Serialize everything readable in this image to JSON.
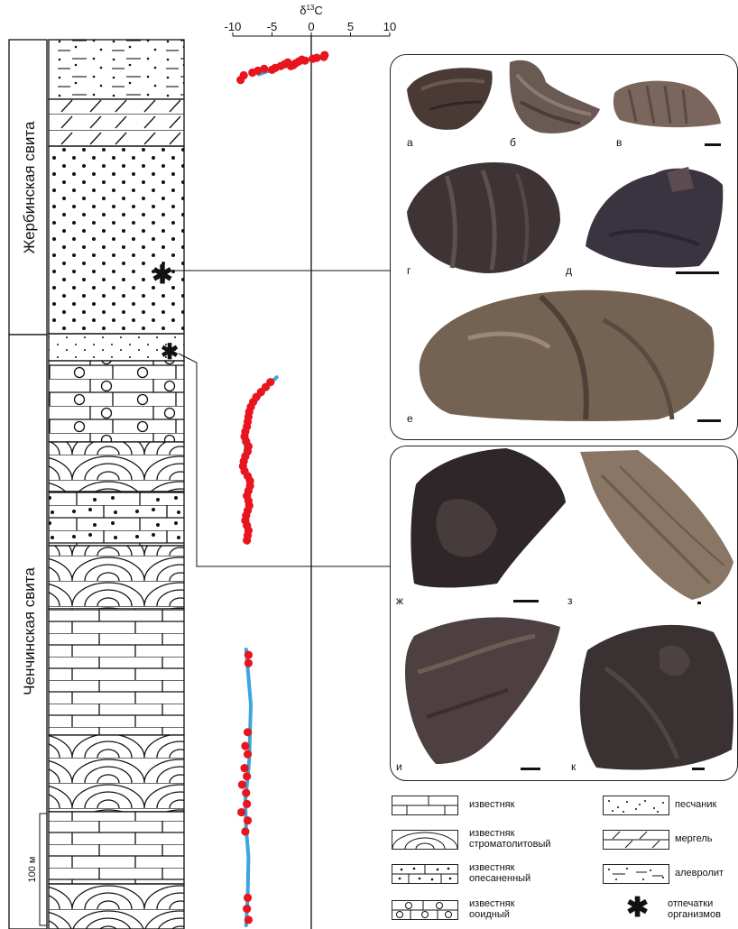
{
  "formations": {
    "upper": "Жербинская свита",
    "lower": "Ченчинская свита"
  },
  "chart_data": {
    "type": "scatter",
    "title": "",
    "xlabel": "δ13C",
    "xlabel_main": "δ",
    "xlabel_sup": "13",
    "xlabel_tail": "C",
    "xlim": [
      -10,
      10
    ],
    "xticks": [
      "-10",
      "-5",
      "0",
      "5",
      "10"
    ],
    "ylabel": "",
    "series": [
      {
        "section": "upper",
        "points": [
          [
            0.7,
            0.06
          ],
          [
            1.6,
            0.05
          ],
          [
            1.7,
            0.03
          ],
          [
            0.2,
            0.07
          ],
          [
            -0.8,
            0.09
          ],
          [
            -1.2,
            0.08
          ],
          [
            -1.6,
            0.1
          ],
          [
            -2.0,
            0.12
          ],
          [
            -2.3,
            0.14
          ],
          [
            -2.6,
            0.15
          ],
          [
            -3.0,
            0.11
          ],
          [
            -3.4,
            0.13
          ],
          [
            -3.9,
            0.15
          ],
          [
            -4.6,
            0.17
          ],
          [
            -5.0,
            0.19
          ],
          [
            -6.0,
            0.18
          ],
          [
            -6.8,
            0.2
          ],
          [
            -7.5,
            0.22
          ],
          [
            -8.6,
            0.25
          ],
          [
            -9.0,
            0.3
          ]
        ],
        "trend": [
          [
            2.0,
            0.03
          ],
          [
            0.6,
            0.06
          ],
          [
            -1.5,
            0.1
          ],
          [
            -3.4,
            0.14
          ],
          [
            -5.3,
            0.2
          ],
          [
            -6.7,
            0.24
          ]
        ]
      },
      {
        "section": "middle",
        "points": [
          [
            -5.2,
            0.32
          ],
          [
            -5.8,
            0.34
          ],
          [
            -6.4,
            0.36
          ],
          [
            -7.0,
            0.38
          ],
          [
            -7.4,
            0.4
          ],
          [
            -7.7,
            0.42
          ],
          [
            -7.9,
            0.44
          ],
          [
            -8.0,
            0.46
          ],
          [
            -8.1,
            0.48
          ],
          [
            -8.2,
            0.5
          ],
          [
            -8.4,
            0.52
          ],
          [
            -8.5,
            0.54
          ],
          [
            -8.3,
            0.56
          ],
          [
            -8.0,
            0.58
          ],
          [
            -8.1,
            0.6
          ],
          [
            -8.4,
            0.62
          ],
          [
            -8.6,
            0.64
          ],
          [
            -8.7,
            0.66
          ],
          [
            -8.5,
            0.68
          ],
          [
            -8.1,
            0.7
          ],
          [
            -7.8,
            0.72
          ],
          [
            -7.8,
            0.74
          ],
          [
            -8.0,
            0.76
          ],
          [
            -8.2,
            0.78
          ],
          [
            -8.0,
            0.8
          ],
          [
            -7.9,
            0.82
          ],
          [
            -8.1,
            0.84
          ],
          [
            -8.3,
            0.86
          ],
          [
            -8.4,
            0.88
          ],
          [
            -8.2,
            0.9
          ],
          [
            -8.0,
            0.92
          ],
          [
            -8.1,
            0.94
          ],
          [
            -8.2,
            0.96
          ]
        ],
        "trend": [
          [
            -4.4,
            0.3
          ],
          [
            -6.0,
            0.35
          ],
          [
            -7.6,
            0.42
          ],
          [
            -8.3,
            0.5
          ],
          [
            -8.4,
            0.6
          ],
          [
            -8.6,
            0.66
          ],
          [
            -7.9,
            0.74
          ],
          [
            -8.1,
            0.84
          ],
          [
            -8.3,
            0.9
          ],
          [
            -8.1,
            0.97
          ]
        ]
      },
      {
        "section": "lower",
        "points": [
          [
            -8.0,
            0.02
          ],
          [
            -8.0,
            0.05
          ],
          [
            -8.1,
            0.3
          ],
          [
            -8.4,
            0.35
          ],
          [
            -8.1,
            0.38
          ],
          [
            -8.5,
            0.43
          ],
          [
            -8.2,
            0.46
          ],
          [
            -8.8,
            0.49
          ],
          [
            -8.3,
            0.52
          ],
          [
            -8.2,
            0.56
          ],
          [
            -8.9,
            0.59
          ],
          [
            -8.1,
            0.62
          ],
          [
            -8.4,
            0.66
          ],
          [
            -8.1,
            0.9
          ],
          [
            -8.2,
            0.94
          ],
          [
            -8.0,
            0.98
          ]
        ],
        "trend": [
          [
            -8.3,
            0.0
          ],
          [
            -7.7,
            0.2
          ],
          [
            -7.9,
            0.4
          ],
          [
            -8.4,
            0.55
          ],
          [
            -8.3,
            0.65
          ],
          [
            -8.0,
            0.75
          ],
          [
            -8.1,
            0.9
          ],
          [
            -8.3,
            1.0
          ]
        ]
      }
    ]
  },
  "scale": {
    "label": "100 м"
  },
  "photos": {
    "panel_labels": [
      "а",
      "б",
      "в",
      "г",
      "д",
      "е",
      "ж",
      "з",
      "и",
      "к"
    ]
  },
  "legend": {
    "items": [
      {
        "key": "limestone",
        "line1": "известняк",
        "line2": ""
      },
      {
        "key": "stromatolite",
        "line1": "известняк",
        "line2": "строматолитовый"
      },
      {
        "key": "sandy",
        "line1": "известняк",
        "line2": "опесаненный"
      },
      {
        "key": "ooid",
        "line1": "известняк",
        "line2": "ооидный"
      },
      {
        "key": "sandstone",
        "line1": "песчаник",
        "line2": ""
      },
      {
        "key": "marl",
        "line1": "мергель",
        "line2": ""
      },
      {
        "key": "siltstone",
        "line1": "алевролит",
        "line2": ""
      },
      {
        "key": "imprints",
        "line1": "отпечатки",
        "line2": "организмов"
      }
    ]
  },
  "colors": {
    "points": "#e8141e",
    "trend": "#3aa6dd",
    "ink": "#111111",
    "photo_dark": "#3d3438",
    "photo_mid": "#6a5a52",
    "photo_light": "#8c7a6c"
  }
}
